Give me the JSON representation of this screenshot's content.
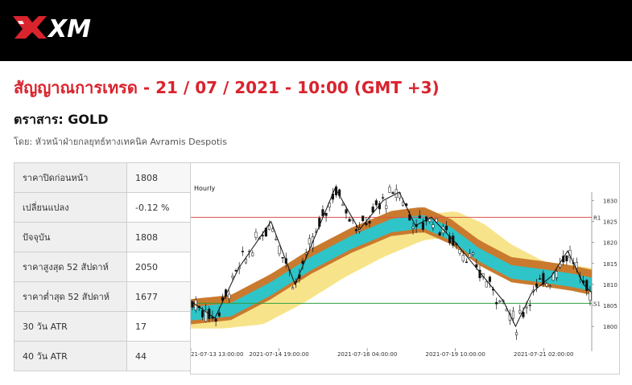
{
  "header": {
    "brand": "XM"
  },
  "headline": "สัญญาณการเทรด - 21 / 07 / 2021 - 10:00 (GMT +3)",
  "instrument": "ตราสาร: GOLD",
  "byline": "โดย: หัวหน้าฝ่ายกลยุทธ์ทางเทคนิค Avramis Despotis",
  "stats": [
    {
      "label": "ราคาปิดก่อนหน้า",
      "value": "1808"
    },
    {
      "label": "เปลี่ยนแปลง",
      "value": "-0.12 %"
    },
    {
      "label": "ปัจจุบัน",
      "value": "1808"
    },
    {
      "label": "ราคาสูงสุด 52 สัปดาห์",
      "value": "2050"
    },
    {
      "label": "ราคาต่ำสุด 52 สัปดาห์",
      "value": "1677"
    },
    {
      "label": "30 วัน ATR",
      "value": "17"
    },
    {
      "label": "40 วัน ATR",
      "value": "44"
    }
  ],
  "colors": {
    "brand_red": "#d9232d",
    "resistance": "#d9534f",
    "support": "#2e9e3e",
    "band_outer": "#f7e48a",
    "band_mid": "#c97a2e",
    "band_inner": "#2ec4c8"
  },
  "chart_data": {
    "type": "candlestick",
    "timeframe_label": "Hourly",
    "x_tick_labels": [
      "21-07-13 13:00:00",
      "2021-07-14 19:00:00",
      "2021-07-16 04:00:00",
      "2021-07-19 10:00:00",
      "2021-07-21 02:00:00"
    ],
    "y_ticks": [
      1800,
      1805,
      1810,
      1815,
      1820,
      1825,
      1830
    ],
    "ylim": [
      1796,
      1832
    ],
    "levels": [
      {
        "label": "R1",
        "value": 1826,
        "color": "#d9534f"
      },
      {
        "label": "S1",
        "value": 1805.5,
        "color": "#2e9e3e"
      }
    ],
    "price_path": [
      [
        0,
        1806
      ],
      [
        0.06,
        1802
      ],
      [
        0.12,
        1814
      ],
      [
        0.2,
        1825
      ],
      [
        0.26,
        1810
      ],
      [
        0.36,
        1833
      ],
      [
        0.42,
        1823
      ],
      [
        0.48,
        1830
      ],
      [
        0.52,
        1832
      ],
      [
        0.56,
        1824
      ],
      [
        0.6,
        1826
      ],
      [
        0.66,
        1820
      ],
      [
        0.72,
        1813
      ],
      [
        0.78,
        1806
      ],
      [
        0.81,
        1800
      ],
      [
        0.85,
        1808
      ],
      [
        0.9,
        1812
      ],
      [
        0.94,
        1818
      ],
      [
        0.98,
        1810
      ],
      [
        1.0,
        1808
      ]
    ],
    "grid": false
  }
}
